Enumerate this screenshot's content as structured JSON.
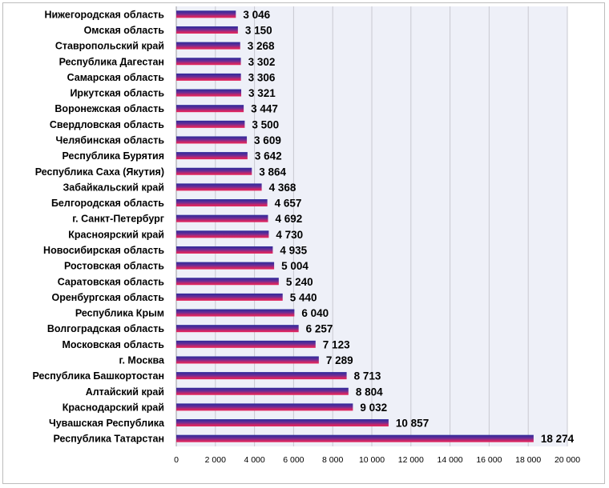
{
  "chart_data": {
    "type": "bar",
    "orientation": "horizontal",
    "categories": [
      "Нижегородская область",
      "Омская область",
      "Ставропольский край",
      "Республика Дагестан",
      "Самарская область",
      "Иркутская область",
      "Воронежская область",
      "Свердловская область",
      "Челябинская область",
      "Республика Бурятия",
      "Республика Саха (Якутия)",
      "Забайкальский край",
      "Белгородская область",
      "г. Санкт-Петербург",
      "Красноярский край",
      "Новосибирская область",
      "Ростовская область",
      "Саратовская область",
      "Оренбургская область",
      "Республика Крым",
      "Волгоградская область",
      "Московская область",
      "г. Москва",
      "Республика Башкортостан",
      "Алтайский край",
      "Краснодарский край",
      "Чувашская Республика",
      "Республика Татарстан"
    ],
    "values": [
      3046,
      3150,
      3268,
      3302,
      3306,
      3321,
      3447,
      3500,
      3609,
      3642,
      3864,
      4368,
      4657,
      4692,
      4730,
      4935,
      5004,
      5240,
      5440,
      6040,
      6257,
      7123,
      7289,
      8713,
      8804,
      9032,
      10857,
      18274
    ],
    "value_labels": [
      "3 046",
      "3 150",
      "3 268",
      "3 302",
      "3 306",
      "3 321",
      "3 447",
      "3 500",
      "3 609",
      "3 642",
      "3 864",
      "4 368",
      "4 657",
      "4 692",
      "4 730",
      "4 935",
      "5 004",
      "5 240",
      "5 440",
      "6 040",
      "6 257",
      "7 123",
      "7 289",
      "8 713",
      "8 804",
      "9 032",
      "10 857",
      "18 274"
    ],
    "xlim": [
      0,
      20000
    ],
    "x_ticks": [
      0,
      2000,
      4000,
      6000,
      8000,
      10000,
      12000,
      14000,
      16000,
      18000,
      20000
    ],
    "x_tick_labels": [
      "0",
      "2 000",
      "4 000",
      "6 000",
      "8 000",
      "10 000",
      "12 000",
      "14 000",
      "16 000",
      "18 000",
      "20 000"
    ],
    "grid": true,
    "legend": "none",
    "title": "",
    "xlabel": "",
    "ylabel": "",
    "colors": {
      "bar_top": "#3a2fa6",
      "bar_bottom": "#e0245e",
      "bar_mid": "#8a2a8c",
      "plot_background": "#eef0f8",
      "grid": "#c8c8d0"
    }
  }
}
